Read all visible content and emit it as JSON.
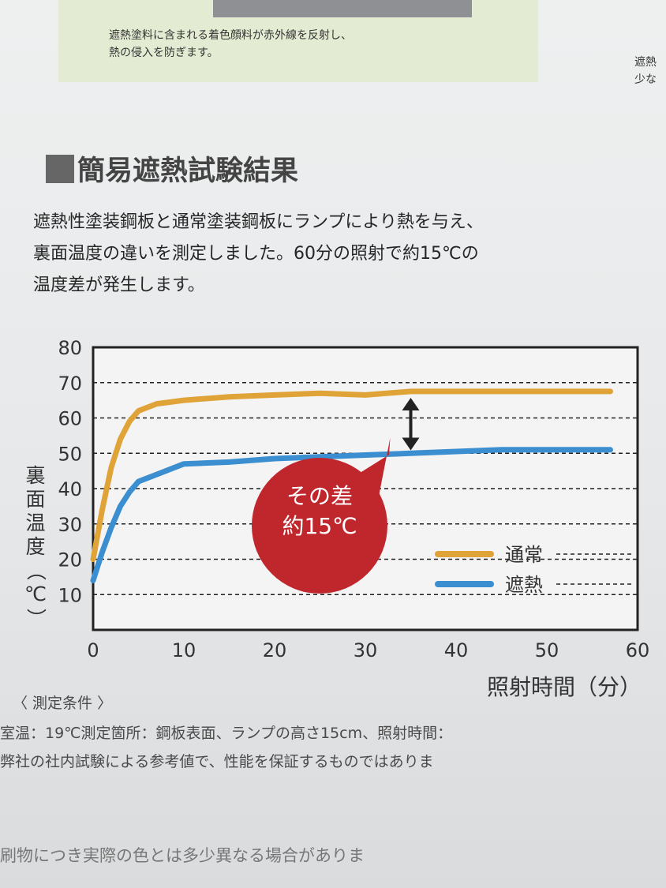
{
  "top_note": {
    "line1": "遮熱塗料に含まれる着色顔料が赤外線を反射し、",
    "line2": "熱の侵入を防ぎます。",
    "right_line1": "遮熱",
    "right_line2": "少な"
  },
  "section_title": "簡易遮熱試験結果",
  "intro": {
    "line1": "遮熱性塗装鋼板と通常塗装鋼板にランプにより熱を与え、",
    "line2": "裏面温度の違いを測定しました。60分の照射で約15℃の",
    "line3": "温度差が発生します。"
  },
  "colors": {
    "normal": "#e0a338",
    "shield": "#3b8fd0",
    "bubble": "#c0272d",
    "accent_gray": "#666666"
  },
  "chart_data": {
    "type": "line",
    "title": "",
    "xlabel": "照射時間（分）",
    "ylabel": "裏面温度（℃）",
    "ylabel_chars": [
      "裏",
      "面",
      "温",
      "度",
      "（",
      "℃",
      "）"
    ],
    "xlim": [
      0,
      60
    ],
    "ylim": [
      0,
      80
    ],
    "x_ticks": [
      "0",
      "10",
      "20",
      "30",
      "40",
      "50",
      "60"
    ],
    "y_ticks": [
      "10",
      "20",
      "30",
      "40",
      "50",
      "60",
      "70",
      "80"
    ],
    "grid": "dashed-horizontal",
    "legend_position": "bottom-right",
    "series": [
      {
        "name": "通常",
        "color": "#e0a338",
        "points": [
          [
            0,
            20
          ],
          [
            1,
            34
          ],
          [
            2,
            46
          ],
          [
            3,
            54
          ],
          [
            4,
            59
          ],
          [
            5,
            62
          ],
          [
            7,
            64
          ],
          [
            10,
            65
          ],
          [
            15,
            66
          ],
          [
            20,
            66.5
          ],
          [
            25,
            67
          ],
          [
            30,
            66.5
          ],
          [
            35,
            67.5
          ],
          [
            40,
            67.5
          ],
          [
            45,
            67.5
          ],
          [
            50,
            67.5
          ],
          [
            55,
            67.5
          ],
          [
            57,
            67.5
          ]
        ]
      },
      {
        "name": "遮熱",
        "color": "#3b8fd0",
        "points": [
          [
            0,
            14
          ],
          [
            1,
            22
          ],
          [
            2,
            29
          ],
          [
            3,
            35
          ],
          [
            4,
            39
          ],
          [
            5,
            42
          ],
          [
            7,
            44
          ],
          [
            10,
            47
          ],
          [
            15,
            47.5
          ],
          [
            20,
            48.5
          ],
          [
            25,
            49
          ],
          [
            30,
            49.5
          ],
          [
            35,
            50
          ],
          [
            40,
            50.5
          ],
          [
            45,
            51
          ],
          [
            50,
            51
          ],
          [
            55,
            51
          ],
          [
            57,
            51
          ]
        ]
      }
    ],
    "annotation": {
      "line1": "その差",
      "line2": "約15℃",
      "at_x": 35,
      "from_y": 49.5,
      "to_y": 67.5
    }
  },
  "conditions": {
    "title": "〈 測定条件 〉",
    "line1": "室温：19℃測定箇所：鋼板表面、ランプの高さ15cm、照射時間：",
    "line2": "弊社の社内試験による参考値で、性能を保証するものではありま"
  },
  "footer": "刷物につき実際の色とは多少異なる場合がありま"
}
